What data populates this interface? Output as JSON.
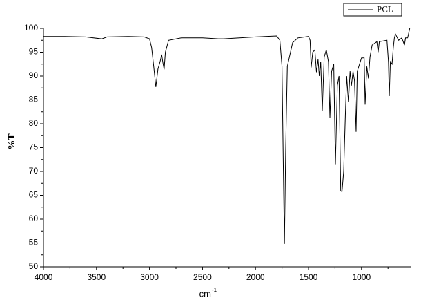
{
  "chart_data": {
    "type": "line",
    "xlabel": {
      "text": "cm",
      "superscript": "-1"
    },
    "ylabel": "%T",
    "xlim": [
      4000,
      530
    ],
    "ylim": [
      50,
      100
    ],
    "xticks": [
      4000,
      3500,
      3000,
      2500,
      2000,
      1500,
      1000
    ],
    "xminorticks": [
      3750,
      3250,
      2750,
      2250,
      1750,
      1250,
      750
    ],
    "yticks": [
      50,
      55,
      60,
      65,
      70,
      75,
      80,
      85,
      90,
      95,
      100
    ],
    "yminorticks": [
      52.5,
      57.5,
      62.5,
      67.5,
      72.5,
      77.5,
      82.5,
      87.5,
      92.5,
      97.5
    ],
    "legend": "top-right",
    "series": [
      {
        "name": "PCL",
        "color": "#000000",
        "x": [
          4000,
          3800,
          3600,
          3450,
          3400,
          3200,
          3050,
          3000,
          2980,
          2960,
          2940,
          2920,
          2900,
          2885,
          2875,
          2862,
          2850,
          2820,
          2700,
          2500,
          2350,
          2300,
          2000,
          1800,
          1770,
          1750,
          1737,
          1727,
          1715,
          1700,
          1650,
          1600,
          1500,
          1485,
          1475,
          1460,
          1440,
          1425,
          1410,
          1398,
          1385,
          1370,
          1352,
          1332,
          1312,
          1298,
          1282,
          1262,
          1246,
          1228,
          1212,
          1196,
          1184,
          1168,
          1152,
          1140,
          1123,
          1108,
          1095,
          1080,
          1066,
          1051,
          1040,
          1000,
          975,
          966,
          950,
          935,
          920,
          900,
          855,
          843,
          832,
          760,
          746,
          738,
          728,
          712,
          700,
          690,
          680,
          650,
          620,
          595,
          585,
          565,
          545
        ],
        "values": [
          98.3,
          98.3,
          98.2,
          97.8,
          98.2,
          98.3,
          98.2,
          97.8,
          96,
          92,
          87.7,
          91.5,
          93,
          94.5,
          93,
          91.4,
          95,
          97.5,
          98,
          98,
          97.8,
          97.8,
          98.2,
          98.4,
          97.5,
          92,
          70,
          54.8,
          75,
          92,
          97,
          98,
          98.3,
          97.5,
          91.8,
          95,
          95.5,
          90.8,
          93.5,
          90,
          93,
          82.7,
          94,
          95.5,
          93,
          81.3,
          91,
          92.5,
          71.5,
          88,
          90,
          66,
          65.7,
          70,
          82,
          90,
          84.5,
          91,
          88,
          91,
          89,
          78.3,
          91,
          93.8,
          93.8,
          84,
          92,
          89.5,
          94,
          96.5,
          97.2,
          95,
          97.2,
          97.5,
          93,
          85.8,
          93,
          92.5,
          96,
          98,
          98.8,
          97.5,
          98,
          96.5,
          98,
          98,
          100
        ]
      }
    ]
  }
}
